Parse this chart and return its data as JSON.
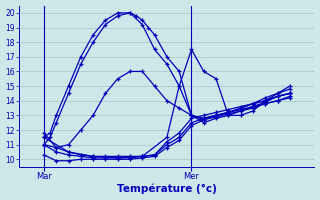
{
  "xlabel": "Température (°c)",
  "bg_color": "#cce8e8",
  "grid_color": "#aacccc",
  "line_color": "#0000bb",
  "ylim": [
    9.5,
    20.5
  ],
  "yticks": [
    10,
    11,
    12,
    13,
    14,
    15,
    16,
    17,
    18,
    19,
    20
  ],
  "xlim": [
    0,
    96
  ],
  "vlines": [
    {
      "x": 8,
      "label": "Mar"
    },
    {
      "x": 56,
      "label": "Mer"
    }
  ],
  "series": [
    {
      "x": [
        8,
        10,
        12,
        16,
        20,
        24,
        28,
        32,
        36,
        38,
        40,
        42,
        44,
        48,
        52,
        56,
        60,
        64,
        68,
        72,
        76,
        80,
        84,
        88
      ],
      "y": [
        11.5,
        11.8,
        13.0,
        15.0,
        17.0,
        18.5,
        19.5,
        20.0,
        20.0,
        19.8,
        19.5,
        19.0,
        18.5,
        17.0,
        16.0,
        13.0,
        12.7,
        13.0,
        13.2,
        13.5,
        13.8,
        14.2,
        14.5,
        15.0
      ]
    },
    {
      "x": [
        8,
        10,
        12,
        16,
        20,
        24,
        28,
        32,
        36,
        40,
        44,
        48,
        52,
        56,
        60,
        64,
        68,
        72,
        76,
        80,
        84,
        88
      ],
      "y": [
        11.0,
        11.5,
        12.5,
        14.5,
        16.5,
        18.0,
        19.2,
        19.8,
        20.0,
        19.2,
        17.5,
        16.5,
        15.0,
        13.0,
        12.5,
        12.8,
        13.0,
        13.3,
        13.6,
        13.9,
        14.3,
        14.5
      ]
    },
    {
      "x": [
        8,
        12,
        16,
        20,
        24,
        28,
        32,
        36,
        40,
        44,
        48,
        52,
        56,
        60,
        64,
        68,
        72,
        76,
        80,
        84,
        88
      ],
      "y": [
        11.0,
        10.8,
        11.0,
        12.0,
        13.0,
        14.5,
        15.5,
        16.0,
        16.0,
        15.0,
        14.0,
        13.5,
        13.0,
        12.8,
        13.0,
        13.2,
        13.5,
        13.8,
        14.0,
        14.3,
        14.5
      ]
    },
    {
      "x": [
        8,
        16,
        24,
        32,
        40,
        48,
        52,
        56,
        60,
        64,
        68,
        72,
        76,
        80,
        84,
        88
      ],
      "y": [
        11.5,
        10.5,
        10.2,
        10.1,
        10.2,
        11.5,
        15.0,
        17.5,
        16.0,
        15.5,
        13.0,
        13.0,
        13.3,
        14.0,
        14.5,
        14.8
      ]
    },
    {
      "x": [
        8,
        12,
        16,
        20,
        24,
        28,
        32,
        36,
        40,
        44,
        48,
        52,
        56,
        60,
        64,
        68,
        72,
        76,
        80,
        84,
        88
      ],
      "y": [
        11.0,
        10.5,
        10.3,
        10.2,
        10.1,
        10.1,
        10.1,
        10.1,
        10.2,
        10.3,
        11.0,
        11.5,
        12.5,
        12.8,
        13.0,
        13.2,
        13.4,
        13.6,
        13.8,
        14.0,
        14.3
      ]
    },
    {
      "x": [
        8,
        12,
        16,
        20,
        24,
        28,
        32,
        36,
        40,
        44,
        48,
        52,
        56,
        60,
        64,
        68,
        72,
        76,
        80,
        84,
        88
      ],
      "y": [
        11.8,
        10.8,
        10.5,
        10.3,
        10.2,
        10.2,
        10.2,
        10.2,
        10.2,
        10.3,
        11.2,
        11.8,
        12.8,
        13.0,
        13.2,
        13.4,
        13.6,
        13.8,
        14.0,
        14.3,
        14.5
      ]
    },
    {
      "x": [
        8,
        12,
        16,
        20,
        24,
        28,
        32,
        36,
        40,
        44,
        48,
        52,
        56,
        60,
        64,
        68,
        72,
        76,
        80,
        84,
        88
      ],
      "y": [
        10.3,
        9.9,
        9.9,
        10.0,
        10.0,
        10.0,
        10.0,
        10.0,
        10.1,
        10.2,
        10.8,
        11.3,
        12.3,
        12.7,
        12.9,
        13.1,
        13.3,
        13.5,
        13.8,
        14.0,
        14.2
      ]
    }
  ]
}
